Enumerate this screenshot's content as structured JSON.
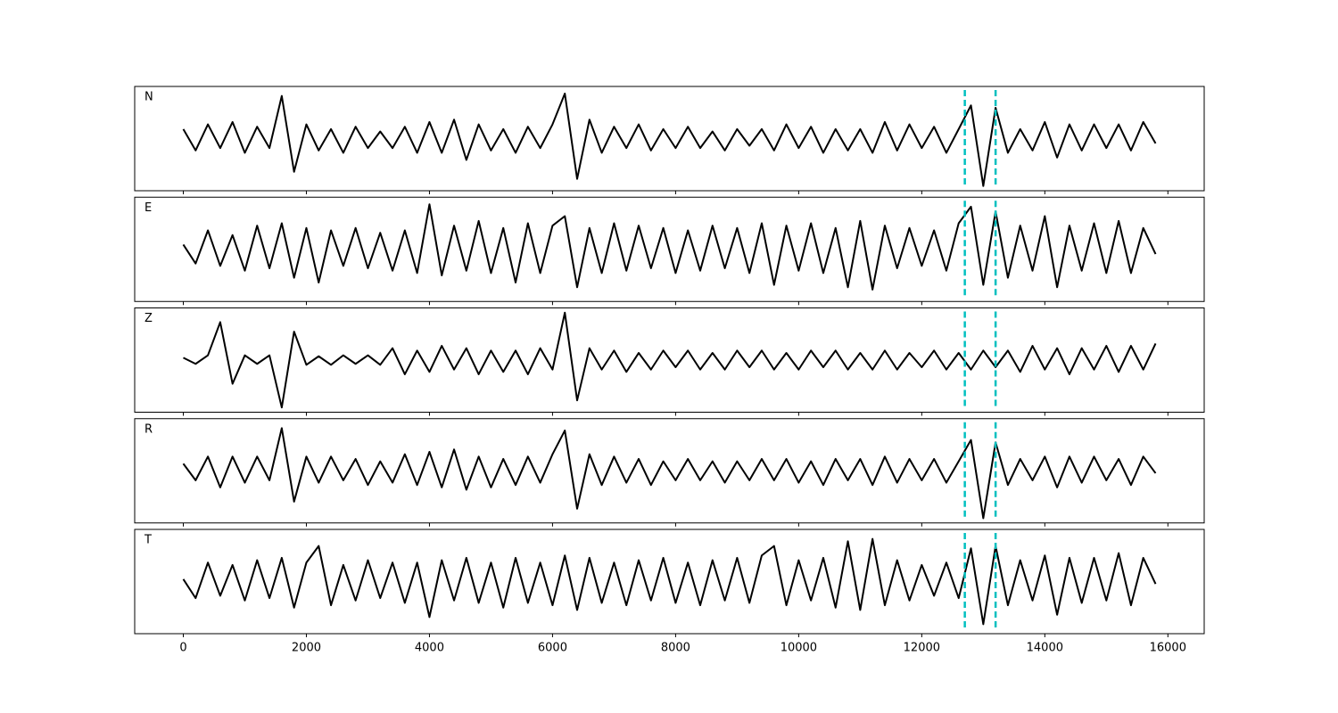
{
  "chart_data": [
    {
      "type": "line",
      "label": "N",
      "color": "#000000",
      "x": [
        0,
        200,
        400,
        600,
        800,
        1000,
        1200,
        1400,
        1600,
        1800,
        2000,
        2200,
        2400,
        2600,
        2800,
        3000,
        3200,
        3400,
        3600,
        3800,
        4000,
        4200,
        4400,
        4600,
        4800,
        5000,
        5200,
        5400,
        5600,
        5800,
        6000,
        6200,
        6400,
        6600,
        6800,
        7000,
        7200,
        7400,
        7600,
        7800,
        8000,
        8200,
        8400,
        8600,
        8800,
        9000,
        9200,
        9400,
        9600,
        9800,
        10000,
        10200,
        10400,
        10600,
        10800,
        11000,
        11200,
        11400,
        11600,
        11800,
        12000,
        12200,
        12400,
        12600,
        12800,
        13000,
        13200,
        13400,
        13600,
        13800,
        14000,
        14200,
        14400,
        14600,
        14800,
        15000,
        15200,
        15400,
        15600,
        15800
      ],
      "values": [
        0.2,
        -0.25,
        0.3,
        -0.2,
        0.35,
        -0.3,
        0.25,
        -0.2,
        0.9,
        -0.7,
        0.3,
        -0.25,
        0.2,
        -0.3,
        0.25,
        -0.2,
        0.15,
        -0.2,
        0.25,
        -0.3,
        0.35,
        -0.3,
        0.4,
        -0.45,
        0.3,
        -0.25,
        0.2,
        -0.3,
        0.25,
        -0.2,
        0.3,
        0.95,
        -0.85,
        0.4,
        -0.3,
        0.25,
        -0.2,
        0.3,
        -0.25,
        0.2,
        -0.2,
        0.25,
        -0.2,
        0.15,
        -0.25,
        0.2,
        -0.15,
        0.2,
        -0.25,
        0.3,
        -0.2,
        0.25,
        -0.3,
        0.2,
        -0.25,
        0.2,
        -0.3,
        0.35,
        -0.25,
        0.3,
        -0.2,
        0.25,
        -0.3,
        0.2,
        0.7,
        -1.0,
        0.65,
        -0.3,
        0.2,
        -0.25,
        0.35,
        -0.4,
        0.3,
        -0.25,
        0.3,
        -0.2,
        0.3,
        -0.25,
        0.35,
        -0.1
      ],
      "xlim": [
        -790,
        16590
      ],
      "ylim": [
        -1.1,
        1.1
      ],
      "xticks": [
        0,
        2000,
        4000,
        6000,
        8000,
        10000,
        12000,
        14000,
        16000
      ],
      "markers": [
        12700,
        13200
      ],
      "marker_color": "#00bfbf"
    },
    {
      "type": "line",
      "label": "E",
      "color": "#000000",
      "x": [
        0,
        200,
        400,
        600,
        800,
        1000,
        1200,
        1400,
        1600,
        1800,
        2000,
        2200,
        2400,
        2600,
        2800,
        3000,
        3200,
        3400,
        3600,
        3800,
        4000,
        4200,
        4400,
        4600,
        4800,
        5000,
        5200,
        5400,
        5600,
        5800,
        6000,
        6200,
        6400,
        6600,
        6800,
        7000,
        7200,
        7400,
        7600,
        7800,
        8000,
        8200,
        8400,
        8600,
        8800,
        9000,
        9200,
        9400,
        9600,
        9800,
        10000,
        10200,
        10400,
        10600,
        10800,
        11000,
        11200,
        11400,
        11600,
        11800,
        12000,
        12200,
        12400,
        12600,
        12800,
        13000,
        13200,
        13400,
        13600,
        13800,
        14000,
        14200,
        14400,
        14600,
        14800,
        15000,
        15200,
        15400,
        15600,
        15800
      ],
      "values": [
        0.1,
        -0.3,
        0.4,
        -0.35,
        0.3,
        -0.45,
        0.5,
        -0.4,
        0.55,
        -0.6,
        0.45,
        -0.7,
        0.4,
        -0.35,
        0.45,
        -0.4,
        0.35,
        -0.45,
        0.4,
        -0.5,
        0.95,
        -0.55,
        0.5,
        -0.45,
        0.6,
        -0.5,
        0.45,
        -0.7,
        0.55,
        -0.5,
        0.5,
        0.7,
        -0.8,
        0.45,
        -0.5,
        0.55,
        -0.45,
        0.5,
        -0.4,
        0.45,
        -0.5,
        0.4,
        -0.45,
        0.5,
        -0.4,
        0.45,
        -0.5,
        0.55,
        -0.75,
        0.5,
        -0.45,
        0.55,
        -0.5,
        0.45,
        -0.8,
        0.6,
        -0.85,
        0.5,
        -0.4,
        0.45,
        -0.35,
        0.4,
        -0.45,
        0.55,
        0.9,
        -0.75,
        0.8,
        -0.6,
        0.5,
        -0.45,
        0.7,
        -0.8,
        0.5,
        -0.45,
        0.55,
        -0.5,
        0.6,
        -0.5,
        0.45,
        -0.1
      ],
      "xlim": [
        -790,
        16590
      ],
      "ylim": [
        -1.1,
        1.1
      ],
      "xticks": [
        0,
        2000,
        4000,
        6000,
        8000,
        10000,
        12000,
        14000,
        16000
      ],
      "markers": [
        12700,
        13200
      ],
      "marker_color": "#00bfbf"
    },
    {
      "type": "line",
      "label": "Z",
      "color": "#000000",
      "x": [
        0,
        200,
        400,
        600,
        800,
        1000,
        1200,
        1400,
        1600,
        1800,
        2000,
        2200,
        2400,
        2600,
        2800,
        3000,
        3200,
        3400,
        3600,
        3800,
        4000,
        4200,
        4400,
        4600,
        4800,
        5000,
        5200,
        5400,
        5600,
        5800,
        6000,
        6200,
        6400,
        6600,
        6800,
        7000,
        7200,
        7400,
        7600,
        7800,
        8000,
        8200,
        8400,
        8600,
        8800,
        9000,
        9200,
        9400,
        9600,
        9800,
        10000,
        10200,
        10400,
        10600,
        10800,
        11000,
        11200,
        11400,
        11600,
        11800,
        12000,
        12200,
        12400,
        12600,
        12800,
        13000,
        13200,
        13400,
        13600,
        13800,
        14000,
        14200,
        14400,
        14600,
        14800,
        15000,
        15200,
        15400,
        15600,
        15800
      ],
      "values": [
        0.05,
        -0.08,
        0.1,
        0.8,
        -0.5,
        0.1,
        -0.08,
        0.1,
        -1.0,
        0.6,
        -0.1,
        0.08,
        -0.1,
        0.1,
        -0.08,
        0.1,
        -0.1,
        0.25,
        -0.3,
        0.2,
        -0.25,
        0.3,
        -0.2,
        0.25,
        -0.3,
        0.2,
        -0.25,
        0.2,
        -0.3,
        0.25,
        -0.2,
        1.0,
        -0.85,
        0.25,
        -0.2,
        0.2,
        -0.25,
        0.15,
        -0.2,
        0.2,
        -0.15,
        0.2,
        -0.2,
        0.15,
        -0.2,
        0.2,
        -0.15,
        0.2,
        -0.2,
        0.15,
        -0.2,
        0.2,
        -0.15,
        0.2,
        -0.2,
        0.15,
        -0.2,
        0.2,
        -0.2,
        0.15,
        -0.15,
        0.2,
        -0.2,
        0.15,
        -0.2,
        0.2,
        -0.15,
        0.2,
        -0.25,
        0.3,
        -0.2,
        0.25,
        -0.3,
        0.25,
        -0.2,
        0.3,
        -0.25,
        0.3,
        -0.2,
        0.35
      ],
      "xlim": [
        -790,
        16590
      ],
      "ylim": [
        -1.1,
        1.1
      ],
      "xticks": [
        0,
        2000,
        4000,
        6000,
        8000,
        10000,
        12000,
        14000,
        16000
      ],
      "markers": [
        12700,
        13200
      ],
      "marker_color": "#00bfbf"
    },
    {
      "type": "line",
      "label": "R",
      "color": "#000000",
      "x": [
        0,
        200,
        400,
        600,
        800,
        1000,
        1200,
        1400,
        1600,
        1800,
        2000,
        2200,
        2400,
        2600,
        2800,
        3000,
        3200,
        3400,
        3600,
        3800,
        4000,
        4200,
        4400,
        4600,
        4800,
        5000,
        5200,
        5400,
        5600,
        5800,
        6000,
        6200,
        6400,
        6600,
        6800,
        7000,
        7200,
        7400,
        7600,
        7800,
        8000,
        8200,
        8400,
        8600,
        8800,
        9000,
        9200,
        9400,
        9600,
        9800,
        10000,
        10200,
        10400,
        10600,
        10800,
        11000,
        11200,
        11400,
        11600,
        11800,
        12000,
        12200,
        12400,
        12600,
        12800,
        13000,
        13200,
        13400,
        13600,
        13800,
        14000,
        14200,
        14400,
        14600,
        14800,
        15000,
        15200,
        15400,
        15600,
        15800
      ],
      "values": [
        0.15,
        -0.2,
        0.3,
        -0.35,
        0.3,
        -0.25,
        0.3,
        -0.2,
        0.9,
        -0.65,
        0.3,
        -0.25,
        0.3,
        -0.2,
        0.25,
        -0.3,
        0.2,
        -0.25,
        0.35,
        -0.3,
        0.4,
        -0.35,
        0.45,
        -0.4,
        0.3,
        -0.35,
        0.25,
        -0.3,
        0.3,
        -0.25,
        0.35,
        0.85,
        -0.8,
        0.35,
        -0.3,
        0.3,
        -0.25,
        0.25,
        -0.3,
        0.2,
        -0.2,
        0.25,
        -0.2,
        0.2,
        -0.25,
        0.2,
        -0.2,
        0.25,
        -0.2,
        0.25,
        -0.25,
        0.2,
        -0.3,
        0.25,
        -0.2,
        0.25,
        -0.3,
        0.3,
        -0.25,
        0.25,
        -0.2,
        0.25,
        -0.25,
        0.2,
        0.65,
        -1.0,
        0.6,
        -0.3,
        0.25,
        -0.2,
        0.3,
        -0.35,
        0.3,
        -0.25,
        0.3,
        -0.2,
        0.25,
        -0.3,
        0.3,
        -0.05
      ],
      "xlim": [
        -790,
        16590
      ],
      "ylim": [
        -1.1,
        1.1
      ],
      "xticks": [
        0,
        2000,
        4000,
        6000,
        8000,
        10000,
        12000,
        14000,
        16000
      ],
      "markers": [
        12700,
        13200
      ],
      "marker_color": "#00bfbf"
    },
    {
      "type": "line",
      "label": "T",
      "color": "#000000",
      "x": [
        0,
        200,
        400,
        600,
        800,
        1000,
        1200,
        1400,
        1600,
        1800,
        2000,
        2200,
        2400,
        2600,
        2800,
        3000,
        3200,
        3400,
        3600,
        3800,
        4000,
        4200,
        4400,
        4600,
        4800,
        5000,
        5200,
        5400,
        5600,
        5800,
        6000,
        6200,
        6400,
        6600,
        6800,
        7000,
        7200,
        7400,
        7600,
        7800,
        8000,
        8200,
        8400,
        8600,
        8800,
        9000,
        9200,
        9400,
        9600,
        9800,
        10000,
        10200,
        10400,
        10600,
        10800,
        11000,
        11200,
        11400,
        11600,
        11800,
        12000,
        12200,
        12400,
        12600,
        12800,
        13000,
        13200,
        13400,
        13600,
        13800,
        14000,
        14200,
        14400,
        14600,
        14800,
        15000,
        15200,
        15400,
        15600,
        15800
      ],
      "values": [
        0.05,
        -0.35,
        0.4,
        -0.3,
        0.35,
        -0.4,
        0.45,
        -0.35,
        0.5,
        -0.55,
        0.4,
        0.75,
        -0.5,
        0.35,
        -0.4,
        0.45,
        -0.35,
        0.4,
        -0.45,
        0.4,
        -0.75,
        0.45,
        -0.4,
        0.5,
        -0.45,
        0.4,
        -0.55,
        0.5,
        -0.45,
        0.4,
        -0.5,
        0.55,
        -0.6,
        0.5,
        -0.45,
        0.4,
        -0.5,
        0.45,
        -0.4,
        0.5,
        -0.45,
        0.4,
        -0.5,
        0.45,
        -0.4,
        0.5,
        -0.45,
        0.55,
        0.75,
        -0.5,
        0.45,
        -0.4,
        0.5,
        -0.55,
        0.85,
        -0.6,
        0.9,
        -0.5,
        0.45,
        -0.4,
        0.35,
        -0.3,
        0.4,
        -0.35,
        0.7,
        -0.9,
        0.75,
        -0.5,
        0.45,
        -0.4,
        0.55,
        -0.7,
        0.5,
        -0.45,
        0.5,
        -0.4,
        0.6,
        -0.5,
        0.5,
        -0.05
      ],
      "xlim": [
        -790,
        16590
      ],
      "ylim": [
        -1.1,
        1.1
      ],
      "xticks": [
        0,
        2000,
        4000,
        6000,
        8000,
        10000,
        12000,
        14000,
        16000
      ],
      "markers": [
        12700,
        13200
      ],
      "marker_color": "#00bfbf"
    }
  ]
}
